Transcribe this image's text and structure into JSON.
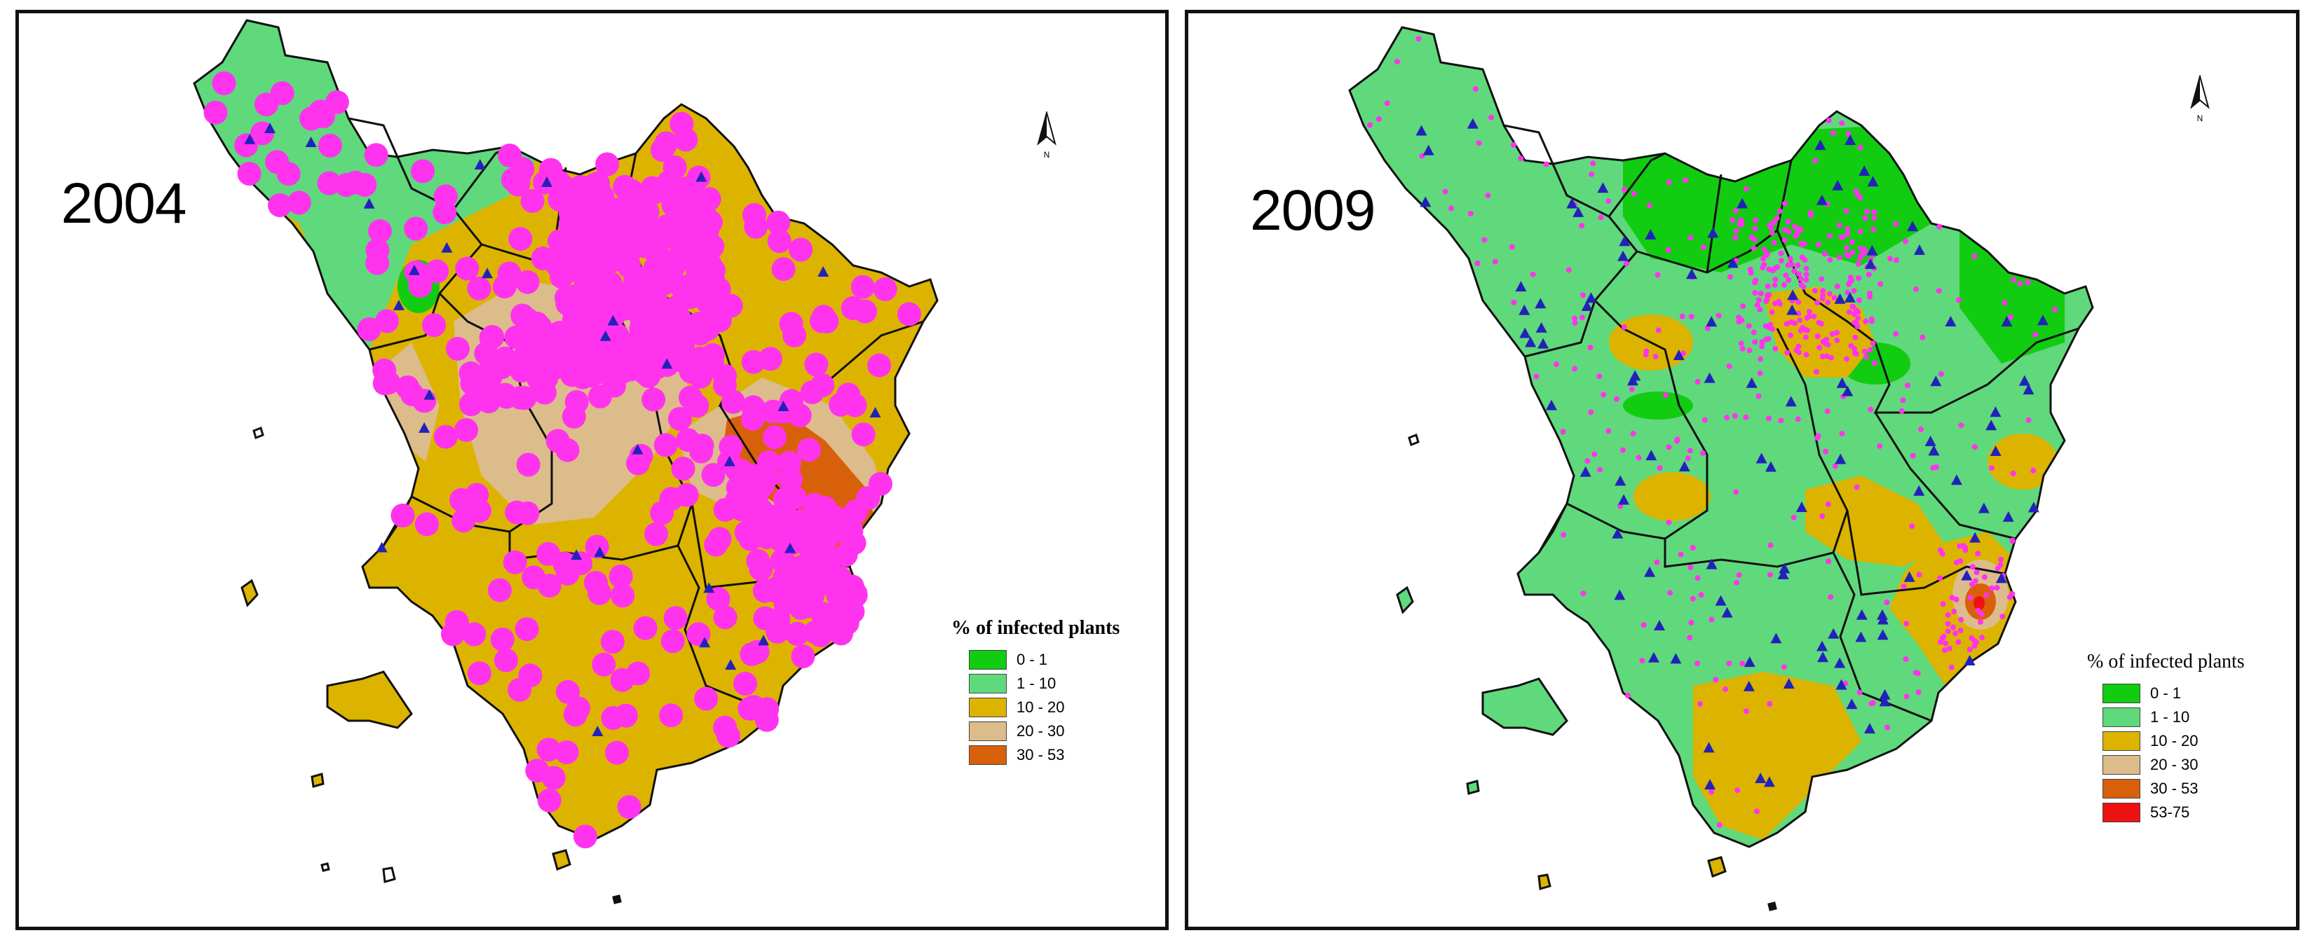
{
  "maps": [
    {
      "year": "2004",
      "legend": {
        "title": "% of infected plants",
        "classes": [
          {
            "label": "0 - 1",
            "color": "#11cc11"
          },
          {
            "label": "1 - 10",
            "color": "#5fd97c"
          },
          {
            "label": "10 - 20",
            "color": "#dcb400"
          },
          {
            "label": "20 - 30",
            "color": "#dcbc8a"
          },
          {
            "label": "30 - 53",
            "color": "#d9600a"
          }
        ]
      },
      "north_label": "N"
    },
    {
      "year": "2009",
      "legend": {
        "title": "% of infected plants",
        "classes": [
          {
            "label": "0 - 1",
            "color": "#11cc11"
          },
          {
            "label": "1 - 10",
            "color": "#5fd97c"
          },
          {
            "label": "10 - 20",
            "color": "#dcb400"
          },
          {
            "label": "20 - 30",
            "color": "#dcbc8a"
          },
          {
            "label": "30 - 53",
            "color": "#d9600a"
          },
          {
            "label": "53-75",
            "color": "#ee1111"
          }
        ]
      },
      "north_label": "N"
    }
  ],
  "symbols": {
    "sample_point_color": "#ff33ee",
    "triangle_color": "#2222bb",
    "border_color": "#111111"
  }
}
